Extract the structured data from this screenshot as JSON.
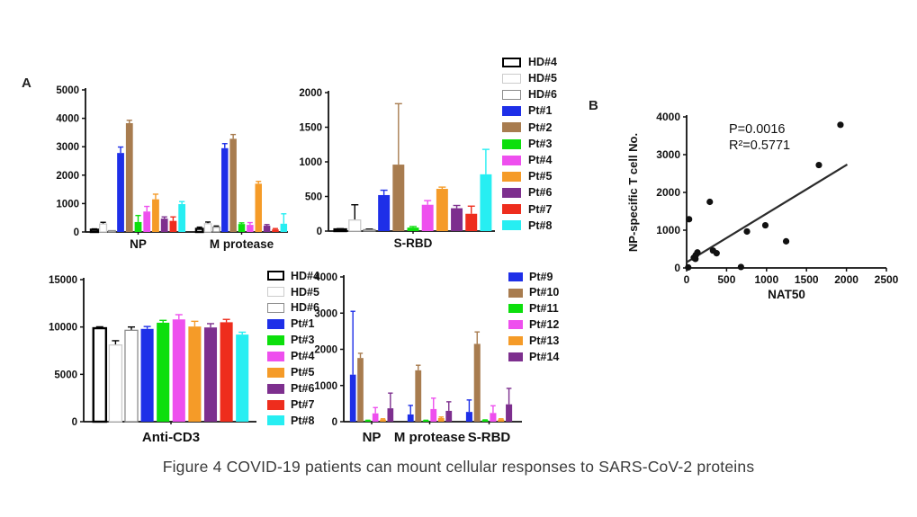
{
  "panels": {
    "a": {
      "label": "A"
    },
    "b": {
      "label": "B"
    }
  },
  "caption": "Figure 4 COVID-19 patients can mount cellular responses to SARS-CoV-2 proteins",
  "palette": {
    "HD#4": {
      "fill": "#ffffff",
      "stroke": "#000000",
      "strokeWidth": 2.4,
      "error": "#000000"
    },
    "HD#5": {
      "fill": "#ffffff",
      "stroke": "#cccccc",
      "strokeWidth": 1.3,
      "error": "#000000"
    },
    "HD#6": {
      "fill": "#ffffff",
      "stroke": "#8c8c8c",
      "strokeWidth": 1.3,
      "error": "#000000"
    },
    "Pt#1": {
      "fill": "#1e2fe8"
    },
    "Pt#2": {
      "fill": "#a87c4f"
    },
    "Pt#3": {
      "fill": "#0cdf0c"
    },
    "Pt#4": {
      "fill": "#ee4fee"
    },
    "Pt#5": {
      "fill": "#f59b28"
    },
    "Pt#6": {
      "fill": "#7d2f8e"
    },
    "Pt#7": {
      "fill": "#ee2d1d"
    },
    "Pt#8": {
      "fill": "#27eef2"
    },
    "Pt#9": {
      "fill": "#1e2fe8"
    },
    "Pt#10": {
      "fill": "#a87c4f"
    },
    "Pt#11": {
      "fill": "#0cdf0c"
    },
    "Pt#12": {
      "fill": "#ee4fee"
    },
    "Pt#13": {
      "fill": "#f59b28"
    },
    "Pt#14": {
      "fill": "#7d2f8e"
    }
  },
  "legends": [
    {
      "id": "legend-top",
      "items": [
        "HD#4",
        "HD#5",
        "HD#6",
        "Pt#1",
        "Pt#2",
        "Pt#3",
        "Pt#4",
        "Pt#5",
        "Pt#6",
        "Pt#7",
        "Pt#8"
      ]
    },
    {
      "id": "legend-bottom-left",
      "items": [
        "HD#4",
        "HD#5",
        "HD#6",
        "Pt#1",
        "Pt#3",
        "Pt#4",
        "Pt#5",
        "Pt#6",
        "Pt#7",
        "Pt#8"
      ]
    },
    {
      "id": "legend-bottom-right",
      "items": [
        "Pt#9",
        "Pt#10",
        "Pt#11",
        "Pt#12",
        "Pt#13",
        "Pt#14"
      ]
    }
  ],
  "chart_data": [
    {
      "id": "chart-np-mprotease",
      "type": "bar",
      "categories": [
        "NP",
        "M protease"
      ],
      "ylim": [
        0,
        5000
      ],
      "ytick_step": 1000,
      "series": [
        {
          "name": "HD#4",
          "values": [
            80,
            110
          ],
          "errors": [
            30,
            60
          ]
        },
        {
          "name": "HD#5",
          "values": [
            280,
            290
          ],
          "errors": [
            60,
            60
          ]
        },
        {
          "name": "HD#6",
          "values": [
            30,
            170
          ],
          "errors": [
            10,
            40
          ]
        },
        {
          "name": "Pt#1",
          "values": [
            2780,
            2950
          ],
          "errors": [
            210,
            160
          ]
        },
        {
          "name": "Pt#2",
          "values": [
            3830,
            3280
          ],
          "errors": [
            100,
            150
          ]
        },
        {
          "name": "Pt#3",
          "values": [
            350,
            280
          ],
          "errors": [
            230,
            40
          ]
        },
        {
          "name": "Pt#4",
          "values": [
            720,
            250
          ],
          "errors": [
            180,
            80
          ]
        },
        {
          "name": "Pt#5",
          "values": [
            1150,
            1700
          ],
          "errors": [
            180,
            80
          ]
        },
        {
          "name": "Pt#6",
          "values": [
            470,
            220
          ],
          "errors": [
            60,
            40
          ]
        },
        {
          "name": "Pt#7",
          "values": [
            390,
            90
          ],
          "errors": [
            140,
            30
          ]
        },
        {
          "name": "Pt#8",
          "values": [
            980,
            290
          ],
          "errors": [
            90,
            350
          ]
        }
      ]
    },
    {
      "id": "chart-srbd",
      "type": "bar",
      "categories": [
        "S-RBD"
      ],
      "ylim": [
        0,
        2000
      ],
      "ytick_step": 500,
      "series": [
        {
          "name": "HD#4",
          "values": [
            25
          ],
          "errors": [
            10
          ]
        },
        {
          "name": "HD#5",
          "values": [
            160
          ],
          "errors": [
            220
          ]
        },
        {
          "name": "HD#6",
          "values": [
            20
          ],
          "errors": [
            10
          ]
        },
        {
          "name": "Pt#1",
          "values": [
            520
          ],
          "errors": [
            70
          ]
        },
        {
          "name": "Pt#2",
          "values": [
            960
          ],
          "errors": [
            880
          ]
        },
        {
          "name": "Pt#3",
          "values": [
            50
          ],
          "errors": [
            15
          ]
        },
        {
          "name": "Pt#4",
          "values": [
            380
          ],
          "errors": [
            60
          ]
        },
        {
          "name": "Pt#5",
          "values": [
            610
          ],
          "errors": [
            25
          ]
        },
        {
          "name": "Pt#6",
          "values": [
            330
          ],
          "errors": [
            40
          ]
        },
        {
          "name": "Pt#7",
          "values": [
            250
          ],
          "errors": [
            110
          ]
        },
        {
          "name": "Pt#8",
          "values": [
            820
          ],
          "errors": [
            360
          ]
        }
      ]
    },
    {
      "id": "chart-nat50-scatter",
      "type": "scatter",
      "xlabel": "NAT50",
      "ylabel": "NP-specific T cell No.",
      "xlim": [
        0,
        2500
      ],
      "xtick_step": 500,
      "ylim": [
        0,
        4000
      ],
      "ytick_step": 1000,
      "annotations": [
        "P=0.0016",
        "R²=0.5771"
      ],
      "points": [
        [
          30,
          1290
        ],
        [
          20,
          15
        ],
        [
          90,
          270
        ],
        [
          110,
          240
        ],
        [
          115,
          340
        ],
        [
          135,
          410
        ],
        [
          290,
          1750
        ],
        [
          330,
          460
        ],
        [
          375,
          390
        ],
        [
          680,
          25
        ],
        [
          755,
          965
        ],
        [
          985,
          1130
        ],
        [
          1245,
          705
        ],
        [
          1655,
          2725
        ],
        [
          1925,
          3790
        ]
      ],
      "trendline": {
        "x1": 0,
        "y1": 150,
        "x2": 2010,
        "y2": 2740
      }
    },
    {
      "id": "chart-anti-cd3",
      "type": "bar",
      "categories": [
        "Anti-CD3"
      ],
      "ylim": [
        0,
        15000
      ],
      "ytick_step": 5000,
      "series": [
        {
          "name": "HD#4",
          "values": [
            9870
          ],
          "errors": [
            150
          ]
        },
        {
          "name": "HD#5",
          "values": [
            8100
          ],
          "errors": [
            450
          ]
        },
        {
          "name": "HD#6",
          "values": [
            9650
          ],
          "errors": [
            350
          ]
        },
        {
          "name": "Pt#1",
          "values": [
            9800
          ],
          "errors": [
            250
          ]
        },
        {
          "name": "Pt#3",
          "values": [
            10450
          ],
          "errors": [
            250
          ]
        },
        {
          "name": "Pt#4",
          "values": [
            10800
          ],
          "errors": [
            500
          ]
        },
        {
          "name": "Pt#5",
          "values": [
            10050
          ],
          "errors": [
            550
          ]
        },
        {
          "name": "Pt#6",
          "values": [
            9950
          ],
          "errors": [
            400
          ]
        },
        {
          "name": "Pt#7",
          "values": [
            10500
          ],
          "errors": [
            300
          ]
        },
        {
          "name": "Pt#8",
          "values": [
            9200
          ],
          "errors": [
            250
          ]
        }
      ]
    },
    {
      "id": "chart-pt9-14",
      "type": "bar",
      "categories": [
        "NP",
        "M protease",
        "S-RBD"
      ],
      "ylim": [
        0,
        4000
      ],
      "ytick_step": 1000,
      "series": [
        {
          "name": "Pt#9",
          "values": [
            1300,
            200,
            270
          ],
          "errors": [
            1750,
            250,
            330
          ]
        },
        {
          "name": "Pt#10",
          "values": [
            1760,
            1420,
            2150
          ],
          "errors": [
            130,
            140,
            330
          ]
        },
        {
          "name": "Pt#11",
          "values": [
            30,
            30,
            40
          ],
          "errors": [
            10,
            10,
            10
          ]
        },
        {
          "name": "Pt#12",
          "values": [
            230,
            350,
            240
          ],
          "errors": [
            160,
            300,
            200
          ]
        },
        {
          "name": "Pt#13",
          "values": [
            60,
            100,
            60
          ],
          "errors": [
            20,
            30,
            20
          ]
        },
        {
          "name": "Pt#14",
          "values": [
            370,
            300,
            480
          ],
          "errors": [
            420,
            250,
            440
          ]
        }
      ]
    }
  ]
}
